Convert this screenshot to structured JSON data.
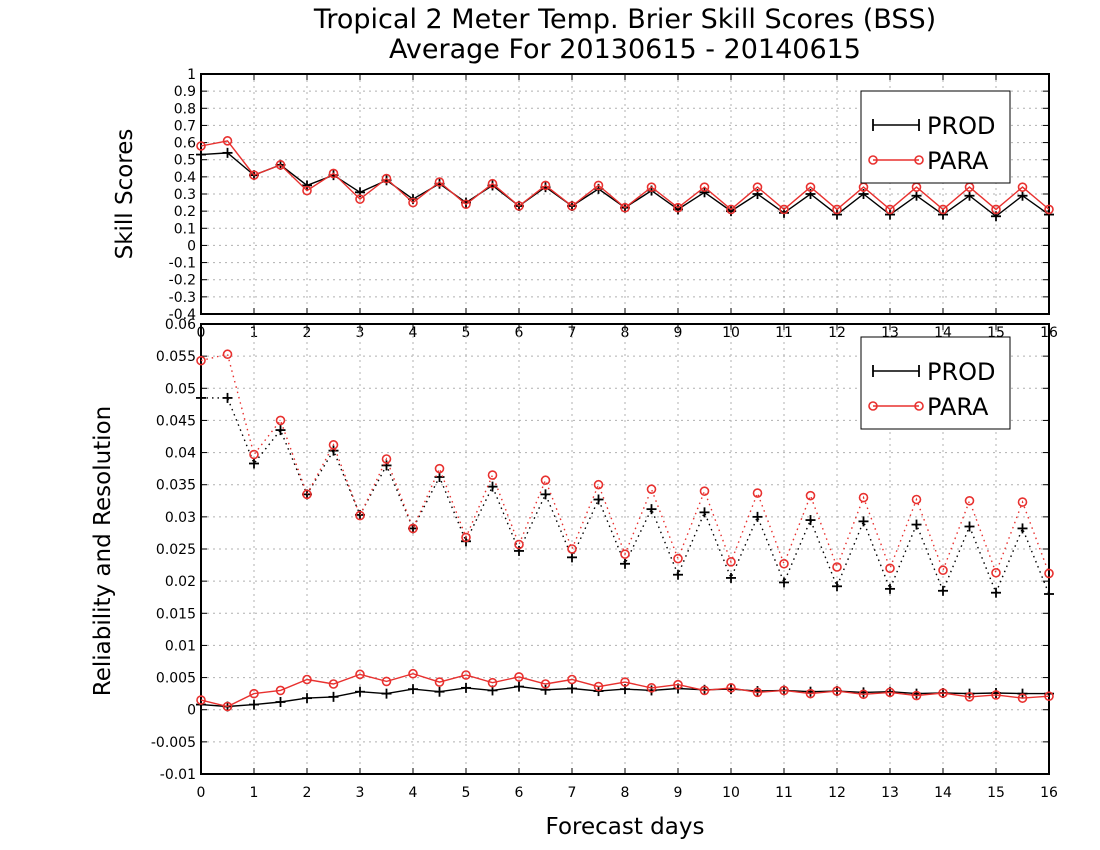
{
  "title_line1": "Tropical 2 Meter Temp. Brier Skill Scores (BSS)",
  "title_line2": "Average For 20130615 - 20140615",
  "xlabel": "Forecast days",
  "colors": {
    "PROD": "#000000",
    "PARA": "#e8312f"
  },
  "chart_data": [
    {
      "type": "line",
      "panel": "top",
      "ylabel": "Skill Scores",
      "xlim": [
        0,
        16
      ],
      "ylim": [
        -0.4,
        1.0
      ],
      "yticks": [
        "-0.4",
        "-0.3",
        "-0.2",
        "-0.1",
        "0",
        "0.1",
        "0.2",
        "0.3",
        "0.4",
        "0.5",
        "0.6",
        "0.7",
        "0.8",
        "0.9",
        "1"
      ],
      "xticks": [
        "0",
        "1",
        "2",
        "3",
        "4",
        "5",
        "6",
        "7",
        "8",
        "9",
        "10",
        "11",
        "12",
        "13",
        "14",
        "15",
        "16"
      ],
      "grid": true,
      "legend": "top-right",
      "x": [
        0,
        0.5,
        1,
        1.5,
        2,
        2.5,
        3,
        3.5,
        4,
        4.5,
        5,
        5.5,
        6,
        6.5,
        7,
        7.5,
        8,
        8.5,
        9,
        9.5,
        10,
        10.5,
        11,
        11.5,
        12,
        12.5,
        13,
        13.5,
        14,
        14.5,
        15,
        15.5,
        16
      ],
      "series": [
        {
          "name": "PROD",
          "style": "solid",
          "marker": "plus",
          "values": [
            0.53,
            0.54,
            0.41,
            0.47,
            0.35,
            0.41,
            0.31,
            0.38,
            0.27,
            0.36,
            0.25,
            0.35,
            0.23,
            0.34,
            0.23,
            0.33,
            0.22,
            0.32,
            0.21,
            0.31,
            0.2,
            0.3,
            0.19,
            0.3,
            0.18,
            0.3,
            0.18,
            0.29,
            0.18,
            0.29,
            0.17,
            0.29,
            0.18
          ]
        },
        {
          "name": "PARA",
          "style": "solid",
          "marker": "circle",
          "values": [
            0.58,
            0.61,
            0.41,
            0.47,
            0.32,
            0.42,
            0.27,
            0.39,
            0.25,
            0.37,
            0.24,
            0.36,
            0.23,
            0.35,
            0.23,
            0.35,
            0.22,
            0.34,
            0.22,
            0.34,
            0.21,
            0.34,
            0.21,
            0.34,
            0.21,
            0.34,
            0.21,
            0.34,
            0.21,
            0.34,
            0.21,
            0.34,
            0.21
          ]
        }
      ]
    },
    {
      "type": "line",
      "panel": "bottom",
      "ylabel": "Reliability and Resolution",
      "xlim": [
        0,
        16
      ],
      "ylim": [
        -0.01,
        0.06
      ],
      "yticks": [
        "-0.01",
        "-0.005",
        "0",
        "0.005",
        "0.01",
        "0.015",
        "0.02",
        "0.025",
        "0.03",
        "0.035",
        "0.04",
        "0.045",
        "0.05",
        "0.055",
        "0.06"
      ],
      "xticks": [
        "0",
        "1",
        "2",
        "3",
        "4",
        "5",
        "6",
        "7",
        "8",
        "9",
        "10",
        "11",
        "12",
        "13",
        "14",
        "15",
        "16"
      ],
      "grid": true,
      "legend": "top-right",
      "x": [
        0,
        0.5,
        1,
        1.5,
        2,
        2.5,
        3,
        3.5,
        4,
        4.5,
        5,
        5.5,
        6,
        6.5,
        7,
        7.5,
        8,
        8.5,
        9,
        9.5,
        10,
        10.5,
        11,
        11.5,
        12,
        12.5,
        13,
        13.5,
        14,
        14.5,
        15,
        15.5,
        16
      ],
      "series": [
        {
          "name": "PROD",
          "style": "dotted",
          "marker": "plus",
          "values": [
            0.0485,
            0.0485,
            0.0383,
            0.0435,
            0.0335,
            0.0403,
            0.0303,
            0.038,
            0.0282,
            0.0362,
            0.0262,
            0.0347,
            0.0247,
            0.0335,
            0.0237,
            0.0327,
            0.0227,
            0.0312,
            0.021,
            0.0307,
            0.0205,
            0.03,
            0.0198,
            0.0295,
            0.0192,
            0.0293,
            0.0188,
            0.0288,
            0.0185,
            0.0285,
            0.0182,
            0.0282,
            0.018
          ]
        },
        {
          "name": "PARA",
          "style": "dotted",
          "marker": "circle",
          "values": [
            0.0543,
            0.0553,
            0.0397,
            0.045,
            0.0335,
            0.0412,
            0.0302,
            0.039,
            0.0282,
            0.0375,
            0.0268,
            0.0365,
            0.0257,
            0.0357,
            0.025,
            0.035,
            0.0242,
            0.0343,
            0.0235,
            0.034,
            0.023,
            0.0337,
            0.0227,
            0.0333,
            0.0222,
            0.033,
            0.022,
            0.0327,
            0.0217,
            0.0325,
            0.0213,
            0.0323,
            0.0212
          ]
        },
        {
          "name": "PROD",
          "style": "solid",
          "marker": "plus",
          "values": [
            0.0008,
            0.0005,
            0.0008,
            0.0012,
            0.0018,
            0.002,
            0.0028,
            0.0025,
            0.0032,
            0.0028,
            0.0034,
            0.003,
            0.0036,
            0.0031,
            0.0033,
            0.0029,
            0.0032,
            0.003,
            0.0033,
            0.0031,
            0.0032,
            0.0029,
            0.003,
            0.0028,
            0.0029,
            0.0027,
            0.0028,
            0.0025,
            0.0026,
            0.0025,
            0.0026,
            0.0025,
            0.0025
          ]
        },
        {
          "name": "PARA",
          "style": "solid",
          "marker": "circle",
          "values": [
            0.0015,
            0.0005,
            0.0025,
            0.003,
            0.0047,
            0.004,
            0.0055,
            0.0044,
            0.0056,
            0.0043,
            0.0054,
            0.0042,
            0.0051,
            0.004,
            0.0047,
            0.0036,
            0.0043,
            0.0034,
            0.0039,
            0.003,
            0.0034,
            0.0027,
            0.003,
            0.0025,
            0.0029,
            0.0024,
            0.0027,
            0.0022,
            0.0026,
            0.002,
            0.0023,
            0.0018,
            0.0021
          ]
        }
      ]
    }
  ]
}
